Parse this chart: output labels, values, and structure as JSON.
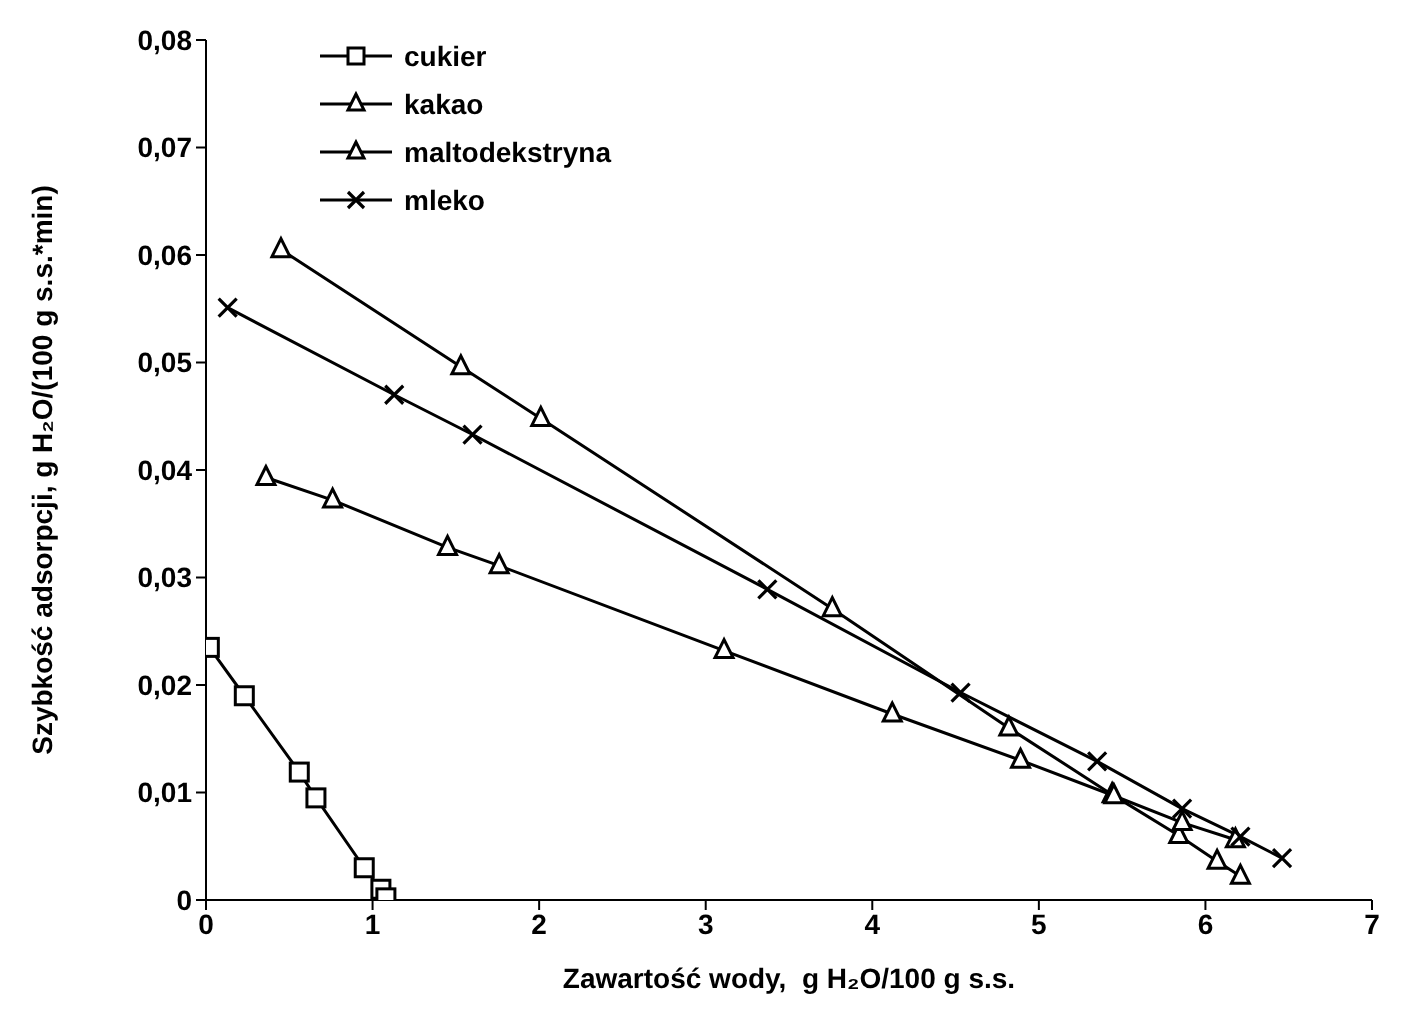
{
  "chart_data": {
    "type": "line",
    "xlabel": "Zawartość wody,  g H₂O/100 g s.s.",
    "ylabel": "Szybkość adsorpcji, g H₂O/(100 g s.s.*min)",
    "xlim": [
      0,
      7
    ],
    "xticks": [
      0,
      1,
      2,
      3,
      4,
      5,
      6,
      7
    ],
    "ylim": [
      0,
      0.08
    ],
    "yticks": [
      {
        "value": 0,
        "label": "0"
      },
      {
        "value": 0.01,
        "label": "0,01"
      },
      {
        "value": 0.02,
        "label": "0,02"
      },
      {
        "value": 0.03,
        "label": "0,03"
      },
      {
        "value": 0.04,
        "label": "0,04"
      },
      {
        "value": 0.05,
        "label": "0,05"
      },
      {
        "value": 0.06,
        "label": "0,06"
      },
      {
        "value": 0.07,
        "label": "0,07"
      },
      {
        "value": 0.08,
        "label": "0,08"
      }
    ],
    "grid": false,
    "legend": "top left",
    "line_style": "solid",
    "series": [
      {
        "name": "cukier",
        "color": "#000000",
        "marker": "square",
        "x": [
          0.02,
          0.23,
          0.56,
          0.66,
          0.95,
          1.05,
          1.08
        ],
        "values": [
          0.0235,
          0.019,
          0.0119,
          0.0095,
          0.003,
          0.001,
          0.0002
        ]
      },
      {
        "name": "kakao",
        "color": "#000000",
        "marker": "triangle",
        "x": [
          0.45,
          1.53,
          2.01,
          3.76,
          4.82,
          5.44,
          5.84,
          6.07,
          6.21
        ],
        "values": [
          0.0605,
          0.0496,
          0.0448,
          0.0271,
          0.016,
          0.0098,
          0.006,
          0.0036,
          0.0022
        ]
      },
      {
        "name": "maltodekstryna",
        "color": "#000000",
        "marker": "triangle",
        "x": [
          0.36,
          0.76,
          1.45,
          1.76,
          3.11,
          4.12,
          4.89,
          5.45,
          5.86,
          6.18
        ],
        "values": [
          0.0393,
          0.0372,
          0.0328,
          0.0311,
          0.0232,
          0.0173,
          0.013,
          0.0097,
          0.0072,
          0.0056
        ]
      },
      {
        "name": "mleko",
        "color": "#000000",
        "marker": "cross",
        "x": [
          0.13,
          1.13,
          1.6,
          3.37,
          4.53,
          5.35,
          5.86,
          6.21,
          6.46
        ],
        "values": [
          0.0551,
          0.047,
          0.0433,
          0.0289,
          0.0193,
          0.0129,
          0.0085,
          0.0059,
          0.0039
        ]
      }
    ]
  }
}
